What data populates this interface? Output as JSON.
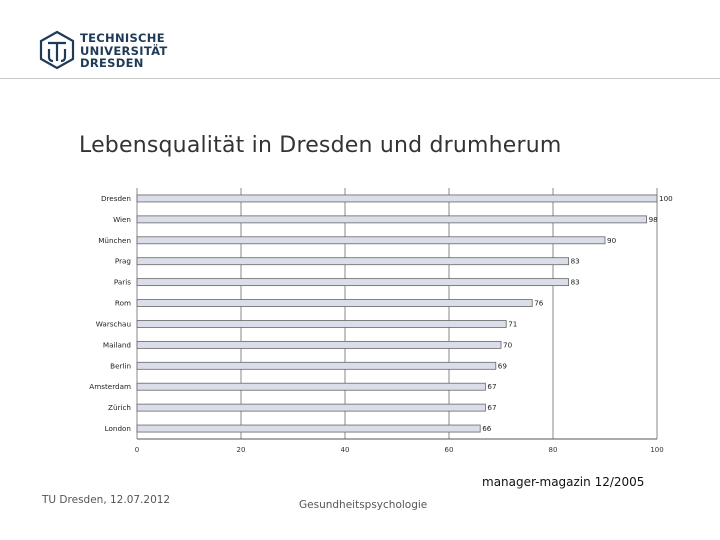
{
  "header": {
    "logo_lines": [
      "TECHNISCHE",
      "UNIVERSITÄT",
      "DRESDEN"
    ]
  },
  "slide": {
    "title": "Lebensqualität in Dresden und drumherum",
    "source": "manager-magazin 12/2005"
  },
  "footer": {
    "left": "TU Dresden, 12.07.2012",
    "middle": "Gesundheitspsychologie"
  },
  "colors": {
    "bar_fill": "#d9dee8",
    "bar_stroke": "#666666",
    "logo": "#1f3a57"
  },
  "chart_data": {
    "type": "bar",
    "orientation": "horizontal",
    "categories": [
      "Dresden",
      "Wien",
      "München",
      "Prag",
      "Paris",
      "Rom",
      "Warschau",
      "Mailand",
      "Berlin",
      "Amsterdam",
      "Zürich",
      "London"
    ],
    "values": [
      100,
      98,
      90,
      83,
      83,
      76,
      71,
      70,
      69,
      67,
      67,
      66
    ],
    "xlim": [
      0,
      100
    ],
    "xticks": [
      0,
      20,
      40,
      60,
      80,
      100
    ],
    "grid": true,
    "title": "",
    "xlabel": "",
    "ylabel": ""
  }
}
